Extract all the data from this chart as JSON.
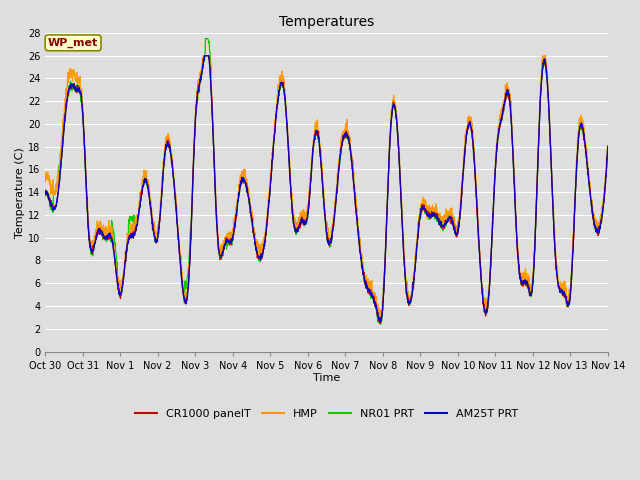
{
  "title": "Temperatures",
  "xlabel": "Time",
  "ylabel": "Temperature (C)",
  "annotation": "WP_met",
  "ylim": [
    0,
    28
  ],
  "yticks": [
    0,
    2,
    4,
    6,
    8,
    10,
    12,
    14,
    16,
    18,
    20,
    22,
    24,
    26,
    28
  ],
  "xtick_labels": [
    "Oct 30",
    "Oct 31",
    "Nov 1",
    "Nov 2",
    "Nov 3",
    "Nov 4",
    "Nov 5",
    "Nov 6",
    "Nov 7",
    "Nov 8",
    "Nov 9",
    "Nov 10",
    "Nov 11",
    "Nov 12",
    "Nov 13",
    "Nov 14"
  ],
  "n_days": 15,
  "colors": {
    "CR1000 panelT": "#cc0000",
    "HMP": "#ff9900",
    "NR01 PRT": "#00cc00",
    "AM25T PRT": "#0000cc"
  },
  "bg_color": "#dedede",
  "grid_color": "#ffffff",
  "legend_entries": [
    "CR1000 panelT",
    "HMP",
    "NR01 PRT",
    "AM25T PRT"
  ],
  "figsize": [
    6.4,
    4.8
  ],
  "dpi": 100,
  "title_fontsize": 10,
  "label_fontsize": 8,
  "tick_fontsize": 7,
  "legend_fontsize": 8,
  "linewidth": 0.9,
  "key_times_base": [
    0.0,
    0.1,
    0.3,
    0.6,
    0.85,
    1.0,
    1.15,
    1.4,
    1.6,
    1.8,
    2.0,
    2.2,
    2.4,
    2.7,
    3.0,
    3.2,
    3.4,
    3.6,
    3.85,
    4.0,
    4.15,
    4.4,
    4.6,
    4.8,
    5.0,
    5.2,
    5.4,
    5.6,
    5.85,
    6.0,
    6.2,
    6.4,
    6.6,
    6.85,
    7.0,
    7.15,
    7.3,
    7.5,
    7.7,
    7.9,
    8.0,
    8.1,
    8.3,
    8.5,
    8.7,
    8.85,
    9.0,
    9.2,
    9.4,
    9.6,
    9.85,
    10.0,
    10.2,
    10.4,
    10.6,
    10.85,
    11.0,
    11.2,
    11.4,
    11.6,
    11.85,
    12.0,
    12.2,
    12.4,
    12.6,
    12.85,
    13.0,
    13.2,
    13.4,
    13.6,
    13.85,
    14.0,
    14.2,
    14.4,
    14.6,
    14.85,
    15.0
  ],
  "key_vals_base": [
    14.0,
    13.5,
    13.0,
    22.5,
    23.0,
    21.0,
    11.0,
    10.5,
    10.0,
    9.5,
    5.0,
    9.5,
    10.5,
    15.0,
    10.0,
    17.5,
    16.0,
    8.0,
    7.5,
    20.0,
    24.0,
    24.5,
    10.0,
    9.5,
    10.0,
    14.5,
    14.0,
    9.5,
    9.5,
    14.5,
    22.0,
    22.0,
    12.0,
    11.5,
    12.0,
    18.0,
    18.5,
    10.5,
    11.5,
    18.0,
    19.0,
    18.5,
    12.0,
    6.5,
    5.0,
    3.5,
    4.0,
    19.0,
    19.0,
    6.5,
    7.0,
    12.0,
    12.0,
    12.0,
    11.0,
    11.5,
    10.5,
    18.0,
    18.5,
    7.5,
    6.0,
    16.0,
    21.0,
    21.5,
    8.5,
    6.0,
    6.0,
    22.0,
    23.0,
    8.5,
    5.0,
    5.0,
    18.0,
    18.0,
    12.0,
    12.0,
    18.0
  ],
  "hmp_offset_times": [
    0.0,
    0.1,
    0.85,
    1.0,
    2.0,
    2.4,
    3.0,
    4.0,
    5.0,
    6.0,
    7.0,
    8.0,
    9.0,
    10.0,
    11.0,
    12.0,
    13.0,
    14.0,
    15.0
  ],
  "hmp_offsets": [
    1.5,
    1.5,
    1.0,
    0.5,
    0.5,
    0.5,
    0.5,
    0.5,
    0.5,
    0.5,
    0.5,
    0.5,
    0.5,
    0.5,
    0.5,
    0.5,
    0.5,
    0.5,
    0.5
  ]
}
